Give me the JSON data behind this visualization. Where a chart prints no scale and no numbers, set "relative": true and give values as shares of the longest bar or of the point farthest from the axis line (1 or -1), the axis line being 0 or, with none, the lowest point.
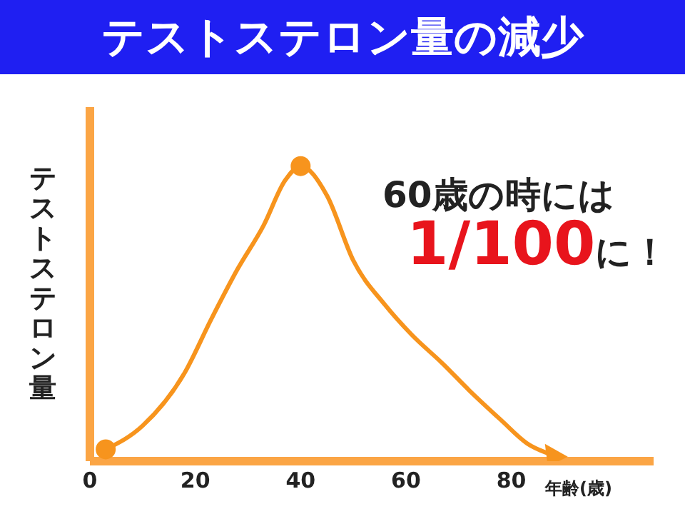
{
  "chart_data": {
    "type": "line",
    "title": "テストステロン量の減少",
    "ylabel": "テストステロン量",
    "xlabel": "年齢(歳)",
    "relative": true,
    "xlim": [
      0,
      107
    ],
    "xticks": [
      0,
      20,
      40,
      60,
      80
    ],
    "annotations": [
      "60歳の時には",
      "1/100に！"
    ],
    "series": [
      {
        "color": "#f7941d",
        "marker": "none",
        "x": [
          3,
          10,
          18,
          23,
          28,
          33,
          37,
          40,
          45,
          50,
          56,
          61,
          67,
          72,
          78,
          83,
          88
        ],
        "values": [
          0.04,
          0.12,
          0.3,
          0.48,
          0.65,
          0.8,
          0.95,
          1.0,
          0.9,
          0.68,
          0.53,
          0.43,
          0.33,
          0.24,
          0.14,
          0.06,
          0.02
        ]
      },
      {
        "type": "scatter",
        "color": "#f7941d",
        "marker": "circle",
        "x": [
          3,
          40
        ],
        "values": [
          0.04,
          1.0
        ]
      }
    ]
  }
}
